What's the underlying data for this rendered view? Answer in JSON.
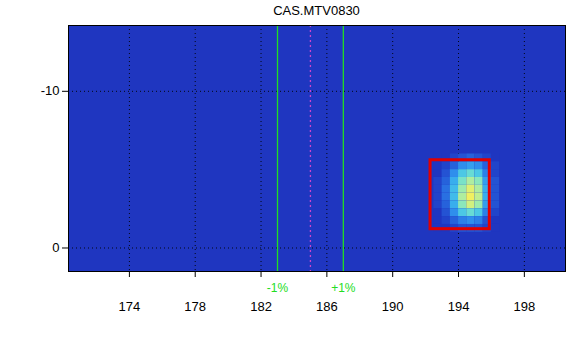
{
  "chart_data": {
    "type": "heatmap",
    "title": "CAS.MTV0830",
    "xlim": [
      170.3,
      200.5
    ],
    "ylim": [
      -14.2,
      1.5
    ],
    "xticks": [
      174,
      178,
      182,
      186,
      190,
      194,
      198
    ],
    "yticks": [
      -10,
      0
    ],
    "grid": true,
    "heatmap": {
      "x": [
        192.5,
        193,
        193.5,
        194,
        194.5,
        195,
        195.5,
        196
      ],
      "y": [
        -6,
        -5.5,
        -5,
        -4.5,
        -4,
        -3.5,
        -3,
        -2.5,
        -2,
        -1.5
      ],
      "cell": 0.5,
      "zlim": [
        0,
        1
      ],
      "values": [
        [
          0,
          0,
          0.05,
          0.1,
          0.15,
          0.1,
          0.05,
          0
        ],
        [
          0,
          0.05,
          0.15,
          0.3,
          0.35,
          0.3,
          0.15,
          0.05
        ],
        [
          0,
          0.1,
          0.3,
          0.5,
          0.6,
          0.5,
          0.25,
          0.05
        ],
        [
          0.05,
          0.15,
          0.4,
          0.65,
          0.8,
          0.7,
          0.35,
          0.1
        ],
        [
          0.05,
          0.2,
          0.45,
          0.75,
          0.95,
          0.8,
          0.4,
          0.1
        ],
        [
          0.05,
          0.2,
          0.45,
          0.8,
          1,
          0.85,
          0.4,
          0.1
        ],
        [
          0.05,
          0.15,
          0.4,
          0.7,
          0.9,
          0.75,
          0.35,
          0.1
        ],
        [
          0,
          0.1,
          0.3,
          0.5,
          0.6,
          0.5,
          0.25,
          0.05
        ],
        [
          0,
          0.05,
          0.15,
          0.25,
          0.3,
          0.25,
          0.1,
          0
        ],
        [
          0,
          0,
          0.05,
          0.1,
          0.1,
          0.1,
          0.05,
          0
        ]
      ]
    },
    "lines": [
      {
        "x": 183,
        "label": "-1%",
        "color": "#22dd22",
        "line_style": "solid"
      },
      {
        "x": 185,
        "color": "#cc44cc",
        "line_style": "dotted"
      },
      {
        "x": 187,
        "label": "+1%",
        "color": "#22dd22",
        "line_style": "solid"
      }
    ],
    "box": {
      "x": [
        192.3,
        195.9
      ],
      "y": [
        -5.6,
        -1.2
      ],
      "color": "#e00000"
    }
  }
}
